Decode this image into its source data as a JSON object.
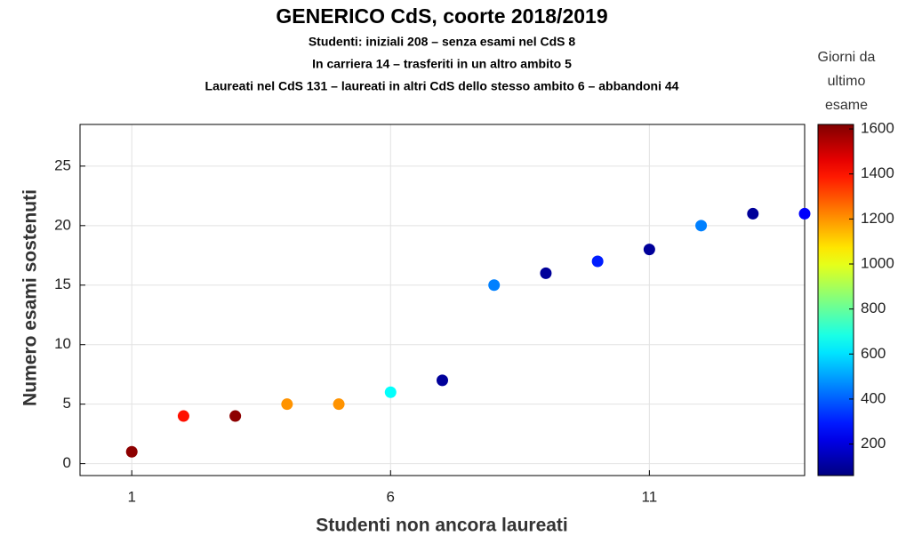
{
  "chart_data": {
    "type": "scatter",
    "title": "GENERICO CdS, coorte 2018/2019",
    "subtitle": [
      "Studenti: iniziali 208 – senza esami nel CdS 8",
      "In carriera 14 – trasferiti in un altro ambito 5",
      "Laureati nel CdS 131 – laureati in altri CdS dello stesso ambito 6 – abbandoni 44"
    ],
    "xlabel": "Studenti non ancora laureati",
    "ylabel": "Numero esami sostenuti",
    "x": [
      1,
      2,
      3,
      4,
      5,
      6,
      7,
      8,
      9,
      10,
      11,
      12,
      13,
      14
    ],
    "values": [
      1,
      4,
      4,
      5,
      5,
      6,
      7,
      15,
      16,
      17,
      18,
      20,
      21,
      21
    ],
    "color_values": [
      1600,
      1400,
      1600,
      1200,
      1200,
      650,
      100,
      450,
      100,
      300,
      100,
      450,
      100,
      250
    ],
    "colormap": "jet",
    "clim": [
      60,
      1620
    ],
    "colorbar_label": [
      "Giorni da",
      "ultimo",
      "esame"
    ],
    "colorbar_ticks": [
      200,
      400,
      600,
      800,
      1000,
      1200,
      1400,
      1600
    ],
    "xlim": [
      0,
      14
    ],
    "xticks": [
      1,
      6,
      11
    ],
    "ylim": [
      -1,
      28.5
    ],
    "yticks": [
      0,
      5,
      10,
      15,
      20,
      25
    ],
    "grid": true
  }
}
